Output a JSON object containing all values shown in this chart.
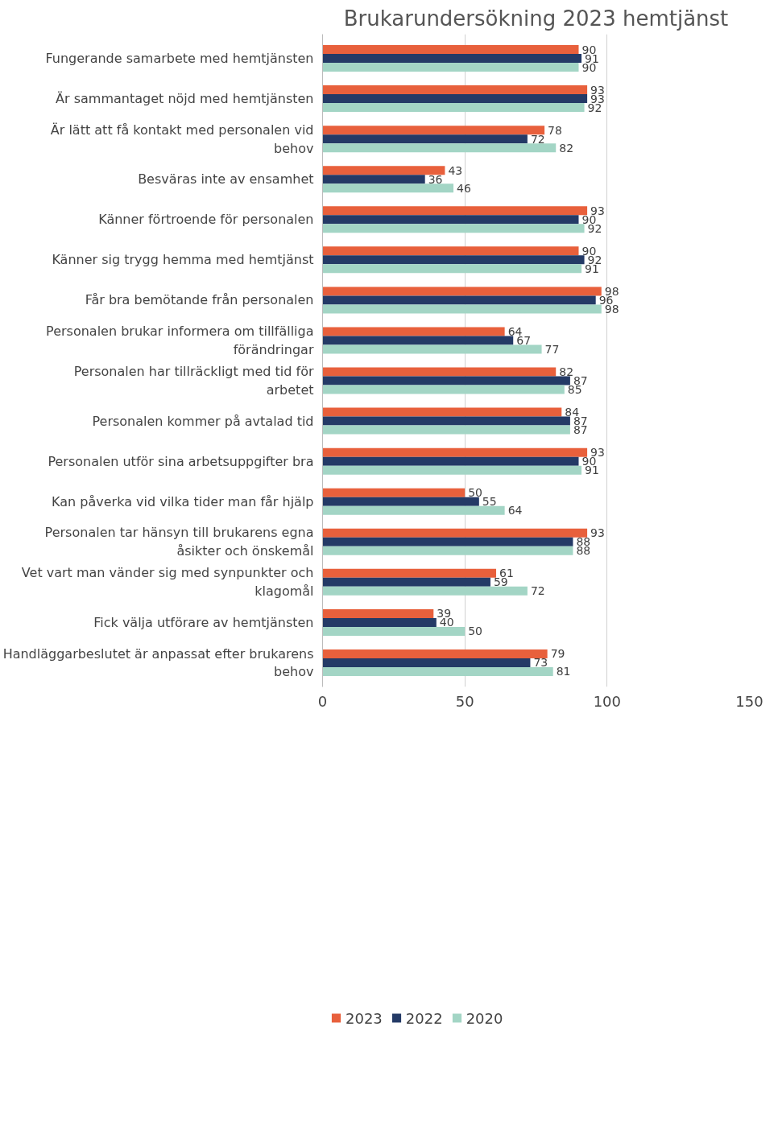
{
  "chart_data": {
    "type": "bar",
    "orientation": "horizontal",
    "title": "Brukarundersökning 2023 hemtjänst",
    "categories": [
      "Fungerande samarbete med hemtjänsten",
      "Är sammantaget nöjd med hemtjänsten",
      "Är lätt att få kontakt med personalen vid behov",
      "Besväras inte av ensamhet",
      "Känner förtroende för personalen",
      "Känner sig trygg hemma med hemtjänst",
      "Får bra bemötande från personalen",
      "Personalen brukar informera om tillfälliga förändringar",
      "Personalen har tillräckligt med tid för arbetet",
      "Personalen kommer på avtalad tid",
      "Personalen utför sina arbetsuppgifter bra",
      "Kan påverka vid vilka tider man får hjälp",
      "Personalen tar hänsyn till brukarens egna åsikter och önskemål",
      "Vet vart man vänder sig med synpunkter och klagomål",
      "Fick välja utförare av hemtjänsten",
      "Handläggarbeslutet är anpassat efter brukarens behov"
    ],
    "series": [
      {
        "name": "2023",
        "color": "#e8603c",
        "values": [
          90,
          93,
          78,
          43,
          93,
          90,
          98,
          64,
          82,
          84,
          93,
          50,
          93,
          61,
          39,
          79
        ]
      },
      {
        "name": "2022",
        "color": "#243a66",
        "values": [
          91,
          93,
          72,
          36,
          90,
          92,
          96,
          67,
          87,
          87,
          90,
          55,
          88,
          59,
          40,
          73
        ]
      },
      {
        "name": "2020",
        "color": "#a3d5c5",
        "values": [
          90,
          92,
          82,
          46,
          92,
          91,
          98,
          77,
          85,
          87,
          91,
          64,
          88,
          72,
          50,
          81
        ]
      }
    ],
    "xlim": [
      0,
      150
    ],
    "xticks": [
      0,
      50,
      100,
      150
    ],
    "grid": "x",
    "legend": "bottom left",
    "data_labels": true
  }
}
